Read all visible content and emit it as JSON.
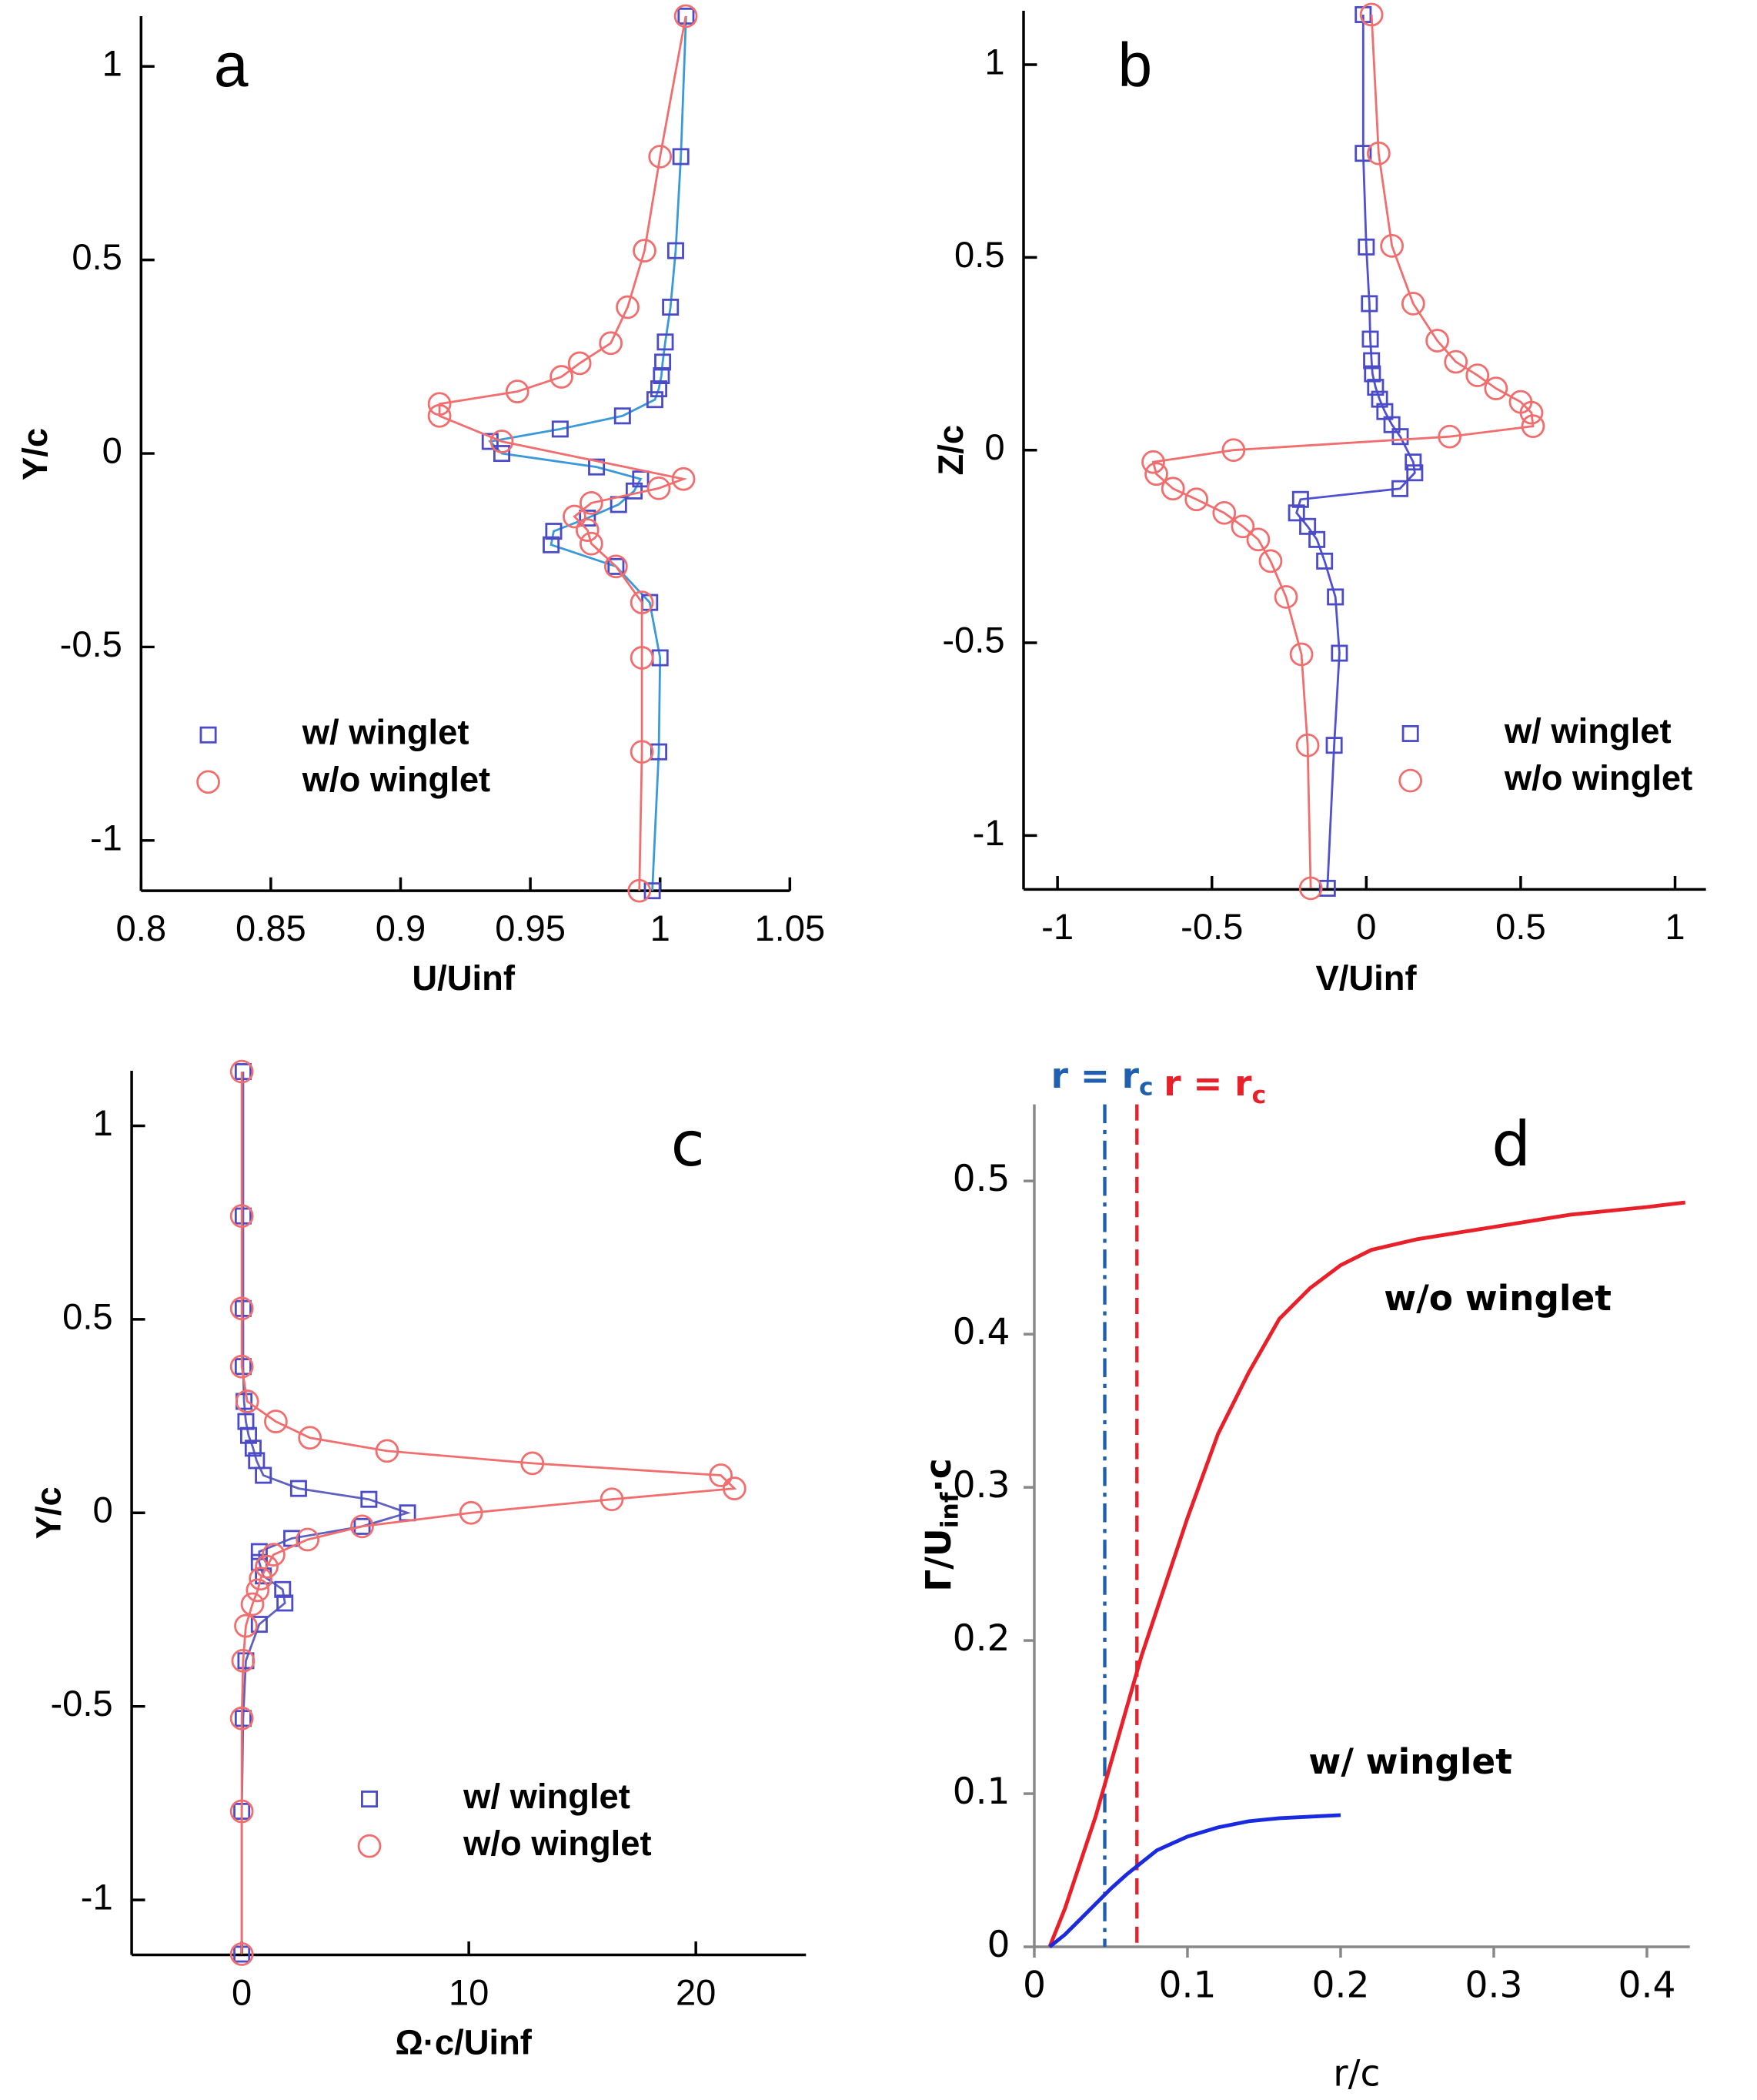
{
  "chart_data": [
    {
      "type": "profile",
      "label": "a",
      "xlabel": "U/Uinf",
      "ylabel": "Y/c",
      "xlim": [
        0.8,
        1.05
      ],
      "xticks": [
        0.8,
        0.85,
        0.9,
        0.95,
        1,
        1.05
      ],
      "ylim": [
        -1.13,
        1.13
      ],
      "yticks": [
        -1,
        -0.5,
        0,
        0.5,
        1
      ],
      "grid": false,
      "legend": "lower left",
      "series": [
        {
          "name": "w/ winglet",
          "marker": "square",
          "color": "#4b4bc8",
          "line_color": "#3a9ad9",
          "x": [
            1.01,
            1.008,
            1.006,
            1.004,
            1.002,
            1.001,
            1.0005,
            0.9995,
            0.998,
            0.9855,
            0.9615,
            0.9345,
            0.939,
            0.9755,
            0.9925,
            0.99,
            0.984,
            0.972,
            0.959,
            0.958,
            0.983,
            0.996,
            1.0,
            0.9995,
            0.997
          ],
          "values": [
            1.13,
            0.767,
            0.524,
            0.378,
            0.288,
            0.236,
            0.201,
            0.167,
            0.139,
            0.097,
            0.063,
            0.031,
            0,
            -0.035,
            -0.066,
            -0.097,
            -0.132,
            -0.167,
            -0.201,
            -0.236,
            -0.292,
            -0.385,
            -0.528,
            -0.771,
            -1.13
          ]
        },
        {
          "name": "w/o winglet",
          "marker": "circle",
          "color": "#f26d6d",
          "line_color": "#f26d6d",
          "x": [
            1.0099,
            1.0,
            0.994,
            0.9875,
            0.981,
            0.969,
            0.962,
            0.945,
            0.915,
            0.915,
            0.939,
            1.009,
            0.9995,
            0.9735,
            0.967,
            0.972,
            0.9735,
            0.983,
            0.993,
            0.993,
            0.993,
            0.992
          ],
          "values": [
            1.13,
            0.767,
            0.524,
            0.378,
            0.285,
            0.233,
            0.198,
            0.16,
            0.128,
            0.097,
            0.031,
            -0.066,
            -0.09,
            -0.128,
            -0.163,
            -0.198,
            -0.233,
            -0.292,
            -0.385,
            -0.528,
            -0.771,
            -1.13
          ]
        }
      ]
    },
    {
      "type": "profile",
      "label": "b",
      "xlabel": "V/Uinf",
      "ylabel": "Z/c",
      "xlim": [
        -1.11,
        1.1
      ],
      "xticks": [
        -1,
        -0.5,
        0,
        0.5,
        1
      ],
      "ylim": [
        -1.14,
        1.14
      ],
      "yticks": [
        -1,
        -0.5,
        0,
        0.5,
        1
      ],
      "grid": false,
      "legend": "lower right",
      "series": [
        {
          "name": "w/ winglet",
          "marker": "square",
          "color": "#4b4bc8",
          "line_color": "#5050d0",
          "x": [
            -0.01,
            -0.01,
            0,
            0.01,
            0.013,
            0.017,
            0.02,
            0.03,
            0.043,
            0.06,
            0.083,
            0.11,
            0.152,
            0.157,
            0.109,
            -0.213,
            -0.226,
            -0.19,
            -0.16,
            -0.135,
            -0.1,
            -0.087,
            -0.104,
            -0.126
          ],
          "values": [
            1.13,
            0.77,
            0.527,
            0.38,
            0.288,
            0.232,
            0.198,
            0.163,
            0.132,
            0.1,
            0.066,
            0.035,
            -0.031,
            -0.059,
            -0.1,
            -0.128,
            -0.163,
            -0.198,
            -0.232,
            -0.288,
            -0.381,
            -0.527,
            -0.766,
            -1.137
          ]
        },
        {
          "name": "w/o winglet",
          "marker": "circle",
          "color": "#f26d6d",
          "line_color": "#f26d6d",
          "x": [
            0.017,
            0.04,
            0.083,
            0.152,
            0.23,
            0.29,
            0.36,
            0.42,
            0.5,
            0.535,
            0.54,
            0.27,
            -0.43,
            -0.69,
            -0.68,
            -0.626,
            -0.55,
            -0.46,
            -0.4,
            -0.35,
            -0.31,
            -0.26,
            -0.21,
            -0.19,
            -0.18
          ],
          "values": [
            1.13,
            0.77,
            0.53,
            0.38,
            0.284,
            0.229,
            0.194,
            0.16,
            0.125,
            0.097,
            0.062,
            0.035,
            0,
            -0.031,
            -0.062,
            -0.1,
            -0.128,
            -0.163,
            -0.198,
            -0.232,
            -0.288,
            -0.381,
            -0.53,
            -0.766,
            -1.137
          ]
        }
      ]
    },
    {
      "type": "profile",
      "label": "c",
      "xlabel": "Ω·c/Uinf",
      "ylabel": "Y/c",
      "xlim": [
        -4.85,
        24.85
      ],
      "xticks": [
        0,
        10,
        20
      ],
      "ylim": [
        -1.142,
        1.142
      ],
      "yticks": [
        -1,
        -0.5,
        0,
        0.5,
        1
      ],
      "grid": false,
      "legend": "lower center",
      "series": [
        {
          "name": "w/ winglet",
          "marker": "square",
          "color": "#4b4bc8",
          "line_color": "#6060c0",
          "x": [
            0.06,
            0.06,
            0.06,
            0.06,
            0.1,
            0.18,
            0.3,
            0.5,
            0.65,
            0.95,
            2.5,
            5.6,
            7.3,
            5.3,
            2.2,
            0.77,
            0.77,
            0.95,
            1.8,
            1.9,
            0.77,
            0.18,
            0.06,
            0,
            0
          ],
          "values": [
            1.14,
            0.767,
            0.528,
            0.378,
            0.288,
            0.236,
            0.2,
            0.167,
            0.135,
            0.097,
            0.063,
            0.035,
            0,
            -0.035,
            -0.066,
            -0.1,
            -0.128,
            -0.163,
            -0.198,
            -0.233,
            -0.288,
            -0.382,
            -0.531,
            -0.771,
            -1.14
          ]
        },
        {
          "name": "w/o winglet",
          "marker": "circle",
          "color": "#f26d6d",
          "line_color": "#f26d6d",
          "x": [
            0,
            0,
            0,
            0,
            0.24,
            1.5,
            3.0,
            6.4,
            12.8,
            21.1,
            21.7,
            16.3,
            10.1,
            5.3,
            2.9,
            1.4,
            1.1,
            0.83,
            0.7,
            0.47,
            0.18,
            0.06,
            0,
            0,
            0
          ],
          "values": [
            1.14,
            0.767,
            0.528,
            0.378,
            0.288,
            0.236,
            0.194,
            0.16,
            0.128,
            0.097,
            0.063,
            0.035,
            0,
            -0.035,
            -0.069,
            -0.108,
            -0.139,
            -0.17,
            -0.2,
            -0.236,
            -0.292,
            -0.382,
            -0.531,
            -0.771,
            -1.14
          ]
        }
      ]
    },
    {
      "type": "line",
      "label": "d",
      "xlabel": "r/c",
      "ylabel": {
        "main": "Γ/U",
        "sub": "inf",
        "tail": "·c"
      },
      "xlim": [
        0,
        0.428
      ],
      "xticks": [
        0,
        0.1,
        0.2,
        0.3,
        0.4
      ],
      "ylim": [
        0,
        0.55
      ],
      "yticks": [
        0,
        0.1,
        0.2,
        0.3,
        0.4,
        0.5
      ],
      "grid": false,
      "ref_lines": [
        {
          "x": 0.046,
          "color": "#1f5fb0",
          "style": "dashdot",
          "label": "r = r",
          "sub": "c"
        },
        {
          "x": 0.067,
          "color": "#e8202a",
          "style": "dashed",
          "label": "r = r",
          "sub": "c"
        }
      ],
      "series": [
        {
          "name": "w/o winglet",
          "color": "#e8202a",
          "x": [
            0.01,
            0.02,
            0.03,
            0.04,
            0.05,
            0.06,
            0.07,
            0.08,
            0.1,
            0.12,
            0.14,
            0.16,
            0.18,
            0.2,
            0.22,
            0.25,
            0.3,
            0.35,
            0.4,
            0.425
          ],
          "values": [
            0,
            0.025,
            0.055,
            0.085,
            0.12,
            0.155,
            0.19,
            0.22,
            0.28,
            0.335,
            0.375,
            0.41,
            0.43,
            0.445,
            0.455,
            0.462,
            0.47,
            0.478,
            0.483,
            0.486
          ]
        },
        {
          "name": "w/ winglet",
          "color": "#1a2ae0",
          "x": [
            0.01,
            0.02,
            0.03,
            0.04,
            0.05,
            0.06,
            0.07,
            0.08,
            0.1,
            0.12,
            0.14,
            0.16,
            0.18,
            0.2
          ],
          "values": [
            0,
            0.008,
            0.018,
            0.028,
            0.038,
            0.047,
            0.055,
            0.063,
            0.072,
            0.078,
            0.082,
            0.084,
            0.085,
            0.086
          ]
        }
      ]
    }
  ]
}
